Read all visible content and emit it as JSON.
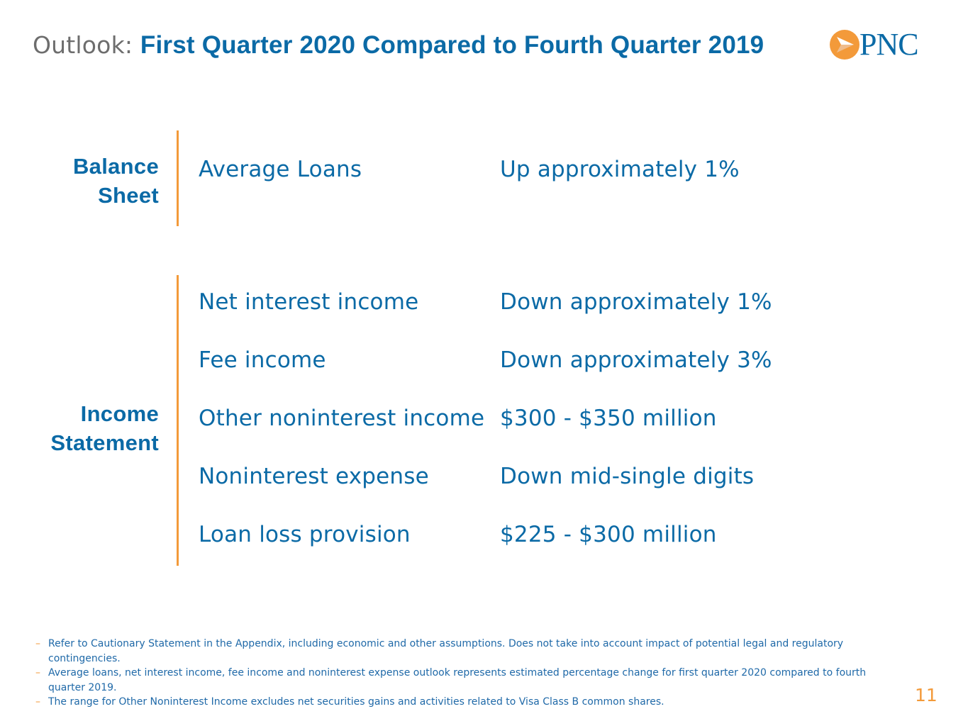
{
  "header": {
    "prefix": "Outlook:",
    "title": "First Quarter 2020 Compared to Fourth Quarter 2019"
  },
  "logo": {
    "text": "PNC",
    "icon": "pnc-triangle-logo-icon",
    "mark_color": "#f39a3a",
    "text_color": "#0b6aa6"
  },
  "balance_sheet": {
    "label_line1": "Balance",
    "label_line2": "Sheet",
    "rows": [
      {
        "label": "Average Loans",
        "value": "Up approximately 1%"
      }
    ]
  },
  "income_statement": {
    "label_line1": "Income",
    "label_line2": "Statement",
    "rows": [
      {
        "label": "Net interest income",
        "value": "Down approximately 1%"
      },
      {
        "label": "Fee income",
        "value": "Down approximately 3%"
      },
      {
        "label": "Other noninterest income",
        "value": "$300 - $350 million"
      },
      {
        "label": "Noninterest expense",
        "value": "Down mid-single digits"
      },
      {
        "label": "Loan loss provision",
        "value": "$225 - $300 million"
      }
    ]
  },
  "footnotes": [
    {
      "dash": "–",
      "text": "Refer to Cautionary Statement in the Appendix, including economic and other assumptions. Does not take into account impact of potential legal and regulatory contingencies."
    },
    {
      "dash": "–",
      "text": "Average loans, net interest income, fee income and noninterest expense outlook represents estimated percentage change for first quarter 2020 compared to fourth quarter 2019."
    },
    {
      "dash": "–",
      "text": "The range for Other Noninterest Income excludes net securities gains and activities related to Visa Class B common shares."
    }
  ],
  "page_number": "11",
  "colors": {
    "accent_blue": "#0b6aa6",
    "accent_orange": "#f39a3a",
    "muted_gray": "#6d6d6d"
  }
}
